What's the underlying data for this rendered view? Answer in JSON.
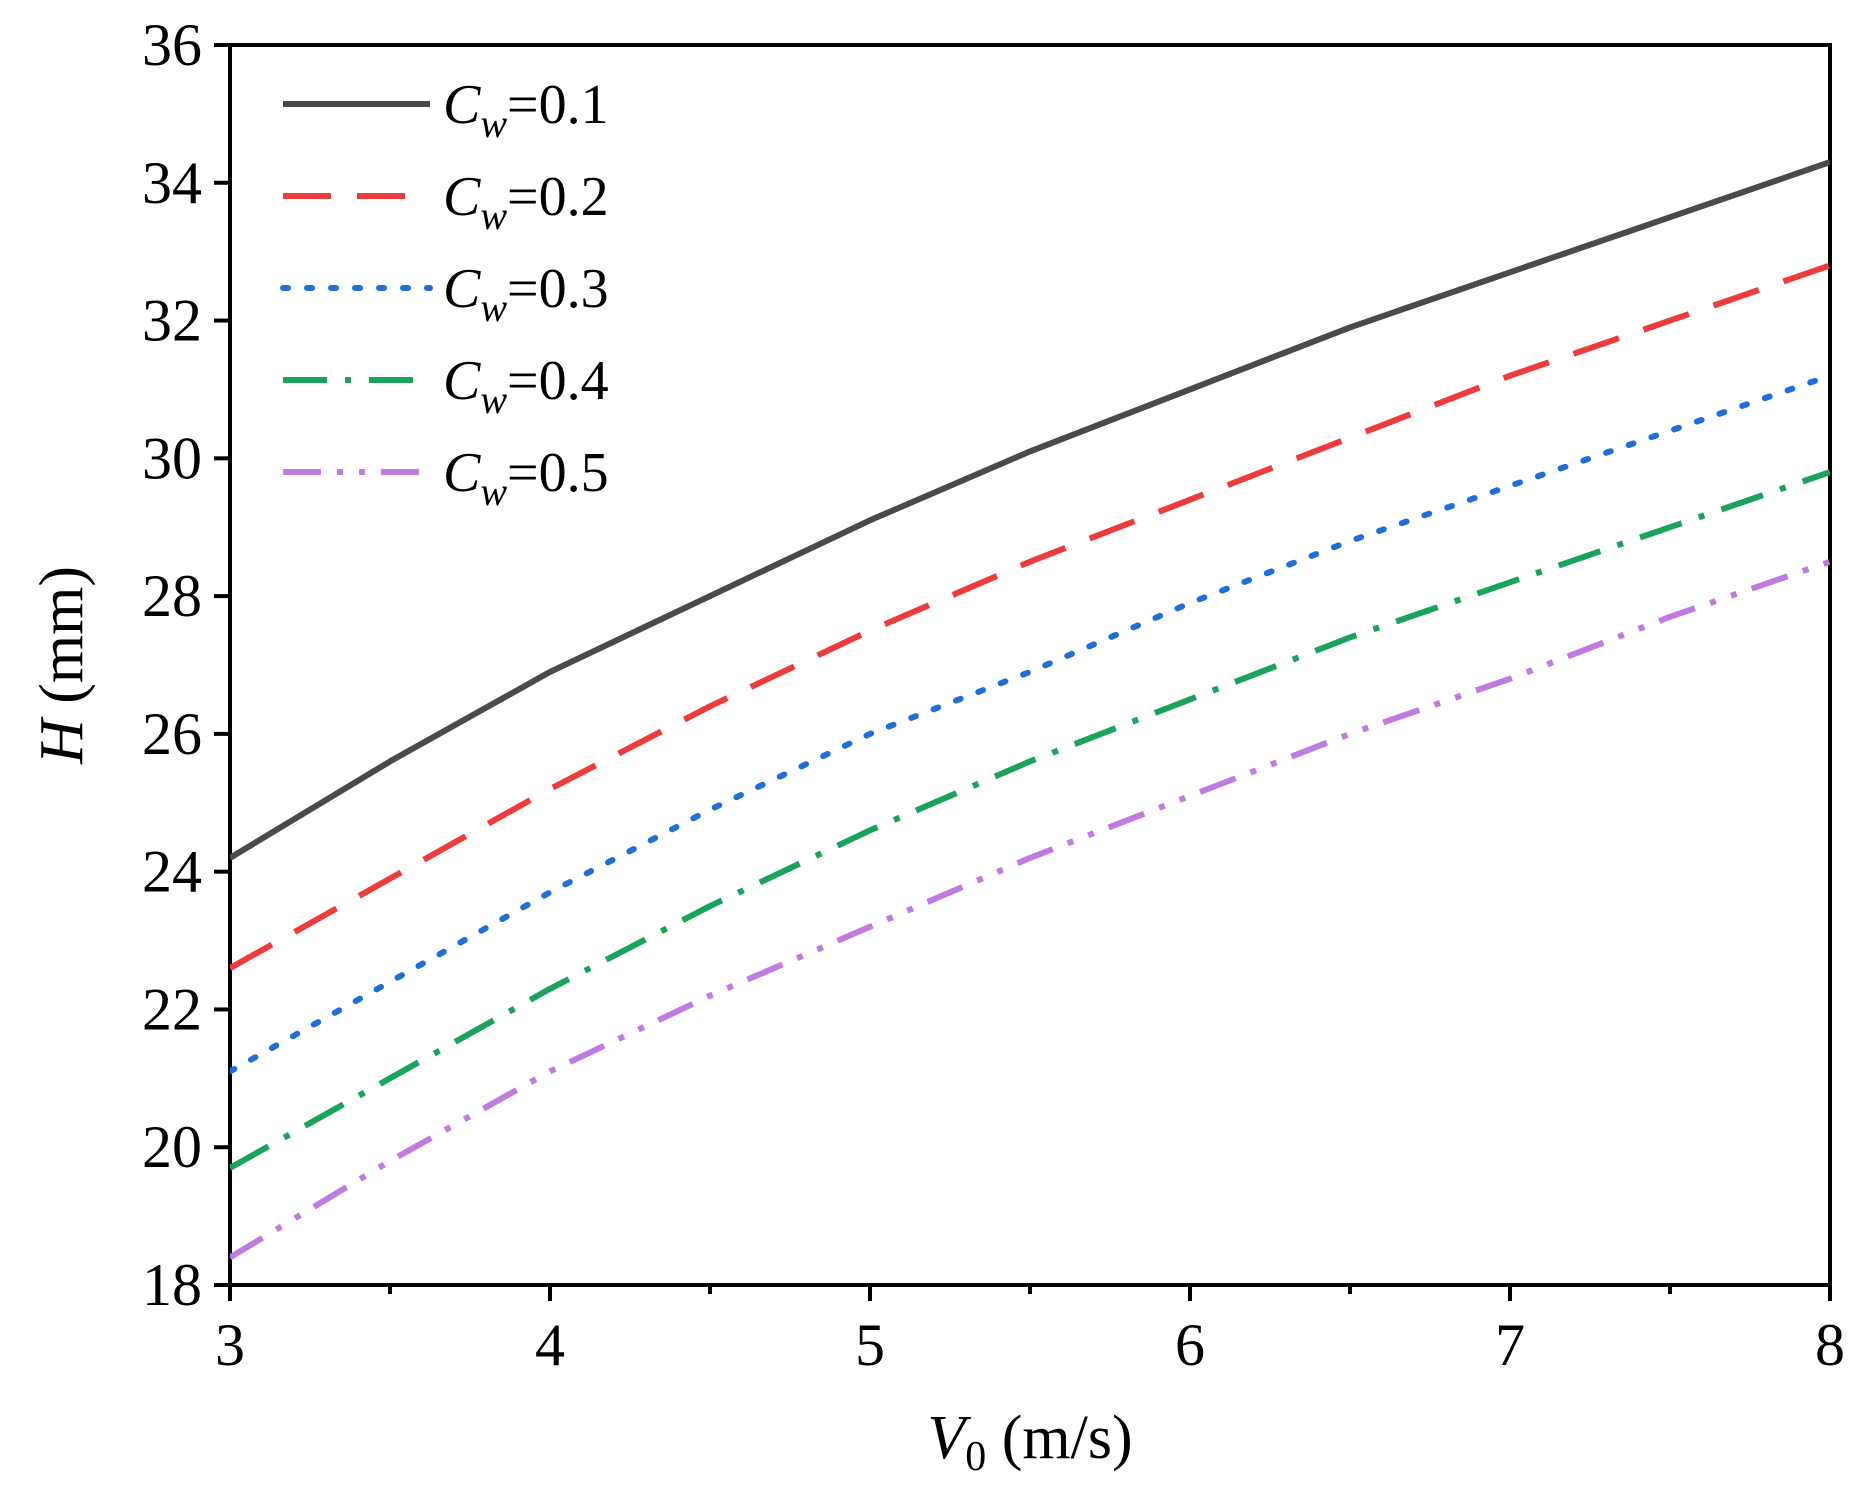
{
  "chart_data": {
    "type": "line",
    "xlabel": {
      "main": "V",
      "sub": "0",
      "unit": " (m/s)"
    },
    "ylabel": {
      "main": "H",
      "unit": " (mm)"
    },
    "xlim": [
      3,
      8
    ],
    "ylim": [
      18,
      36
    ],
    "xticks": [
      3,
      4,
      5,
      6,
      7,
      8
    ],
    "yticks": [
      18,
      20,
      22,
      24,
      26,
      28,
      30,
      32,
      34,
      36
    ],
    "x_minor_ticks": [
      3.5,
      4.5,
      5.5,
      6.5,
      7.5
    ],
    "grid": false,
    "legend_position": "top-left",
    "series": [
      {
        "name_main": "C",
        "name_sub": "w",
        "name_value": "=0.1",
        "color": "#4a4a4a",
        "dash": "solid",
        "x": [
          3,
          3.5,
          4,
          4.5,
          5,
          5.5,
          6,
          6.5,
          7,
          7.5,
          8
        ],
        "y": [
          24.2,
          25.6,
          26.9,
          28.0,
          29.1,
          30.1,
          31.0,
          31.9,
          32.7,
          33.5,
          34.3
        ]
      },
      {
        "name_main": "C",
        "name_sub": "w",
        "name_value": "=0.2",
        "color": "#ee3b3b",
        "dash": "dashed",
        "x": [
          3,
          3.5,
          4,
          4.5,
          5,
          5.5,
          6,
          6.5,
          7,
          7.5,
          8
        ],
        "y": [
          22.6,
          23.9,
          25.2,
          26.4,
          27.5,
          28.5,
          29.4,
          30.3,
          31.2,
          32.0,
          32.8
        ]
      },
      {
        "name_main": "C",
        "name_sub": "w",
        "name_value": "=0.3",
        "color": "#1e6fd9",
        "dash": "dotted",
        "x": [
          3,
          3.5,
          4,
          4.5,
          5,
          5.5,
          6,
          6.5,
          7,
          7.5,
          8
        ],
        "y": [
          21.1,
          22.4,
          23.7,
          24.9,
          26.0,
          26.9,
          27.9,
          28.8,
          29.6,
          30.4,
          31.2
        ]
      },
      {
        "name_main": "C",
        "name_sub": "w",
        "name_value": "=0.4",
        "color": "#1aa35b",
        "dash": "dashdot",
        "x": [
          3,
          3.5,
          4,
          4.5,
          5,
          5.5,
          6,
          6.5,
          7,
          7.5,
          8
        ],
        "y": [
          19.7,
          21.0,
          22.3,
          23.5,
          24.6,
          25.6,
          26.5,
          27.4,
          28.2,
          29.0,
          29.8
        ]
      },
      {
        "name_main": "C",
        "name_sub": "w",
        "name_value": "=0.5",
        "color": "#c07be0",
        "dash": "dashdotdot",
        "x": [
          3,
          3.5,
          4,
          4.5,
          5,
          5.5,
          6,
          6.5,
          7,
          7.5,
          8
        ],
        "y": [
          18.4,
          19.8,
          21.1,
          22.2,
          23.2,
          24.2,
          25.1,
          26.0,
          26.8,
          27.7,
          28.5
        ]
      }
    ]
  }
}
